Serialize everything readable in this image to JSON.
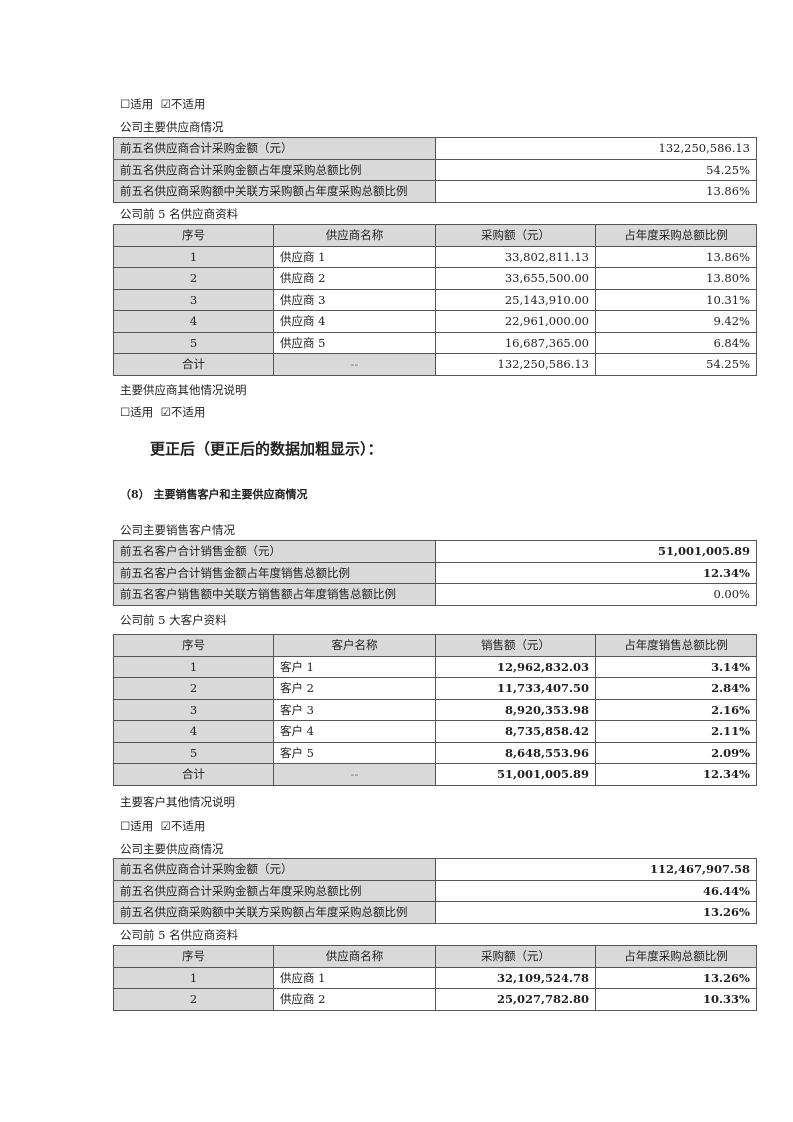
{
  "checkbox_line": {
    "unchecked": "☐适用",
    "checked": "☑不适用"
  },
  "before": {
    "supplier_summary_title": "公司主要供应商情况",
    "supplier_summary": [
      {
        "label": "前五名供应商合计采购金额（元）",
        "value": "132,250,586.13"
      },
      {
        "label": "前五名供应商合计采购金额占年度采购总额比例",
        "value": "54.25%"
      },
      {
        "label": "前五名供应商采购额中关联方采购额占年度采购总额比例",
        "value": "13.86%"
      }
    ],
    "supplier_table_title": "公司前 5 名供应商资料",
    "supplier_table": {
      "headers": [
        "序号",
        "供应商名称",
        "采购额（元）",
        "占年度采购总额比例"
      ],
      "rows": [
        [
          "1",
          "供应商 1",
          "33,802,811.13",
          "13.86%"
        ],
        [
          "2",
          "供应商 2",
          "33,655,500.00",
          "13.80%"
        ],
        [
          "3",
          "供应商 3",
          "25,143,910.00",
          "10.31%"
        ],
        [
          "4",
          "供应商 4",
          "22,961,000.00",
          "9.42%"
        ],
        [
          "5",
          "供应商 5",
          "16,687,365.00",
          "6.84%"
        ]
      ],
      "total": [
        "合计",
        "--",
        "132,250,586.13",
        "54.25%"
      ]
    },
    "supplier_other_title": "主要供应商其他情况说明"
  },
  "corrected_heading": "更正后（更正后的数据加粗显示）：",
  "section_heading": "（8）  主要销售客户和主要供应商情况",
  "after": {
    "customer_summary_title": "公司主要销售客户情况",
    "customer_summary": [
      {
        "label": "前五名客户合计销售金额（元）",
        "value": "51,001,005.89",
        "changed": true
      },
      {
        "label": "前五名客户合计销售金额占年度销售总额比例",
        "value": "12.34%",
        "changed": true
      },
      {
        "label": "前五名客户销售额中关联方销售额占年度销售总额比例",
        "value": "0.00%",
        "changed": false
      }
    ],
    "customer_table_title": "公司前 5 大客户资料",
    "customer_table": {
      "headers": [
        "序号",
        "客户名称",
        "销售额（元）",
        "占年度销售总额比例"
      ],
      "rows": [
        [
          "1",
          "客户 1",
          "12,962,832.03",
          "3.14%"
        ],
        [
          "2",
          "客户 2",
          "11,733,407.50",
          "2.84%"
        ],
        [
          "3",
          "客户 3",
          "8,920,353.98",
          "2.16%"
        ],
        [
          "4",
          "客户 4",
          "8,735,858.42",
          "2.11%"
        ],
        [
          "5",
          "客户 5",
          "8,648,553.96",
          "2.09%"
        ]
      ],
      "total": [
        "合计",
        "--",
        "51,001,005.89",
        "12.34%"
      ]
    },
    "customer_other_title": "主要客户其他情况说明",
    "supplier_summary_title": "公司主要供应商情况",
    "supplier_summary": [
      {
        "label": "前五名供应商合计采购金额（元）",
        "value": "112,467,907.58",
        "changed": true
      },
      {
        "label": "前五名供应商合计采购金额占年度采购总额比例",
        "value": "46.44%",
        "changed": true
      },
      {
        "label": "前五名供应商采购额中关联方采购额占年度采购总额比例",
        "value": "13.26%",
        "changed": true
      }
    ],
    "supplier_table_title": "公司前 5 名供应商资料",
    "supplier_table": {
      "headers": [
        "序号",
        "供应商名称",
        "采购额（元）",
        "占年度采购总额比例"
      ],
      "rows": [
        [
          "1",
          "供应商 1",
          "32,109,524.78",
          "13.26%"
        ],
        [
          "2",
          "供应商 2",
          "25,027,782.80",
          "10.33%"
        ]
      ]
    }
  }
}
